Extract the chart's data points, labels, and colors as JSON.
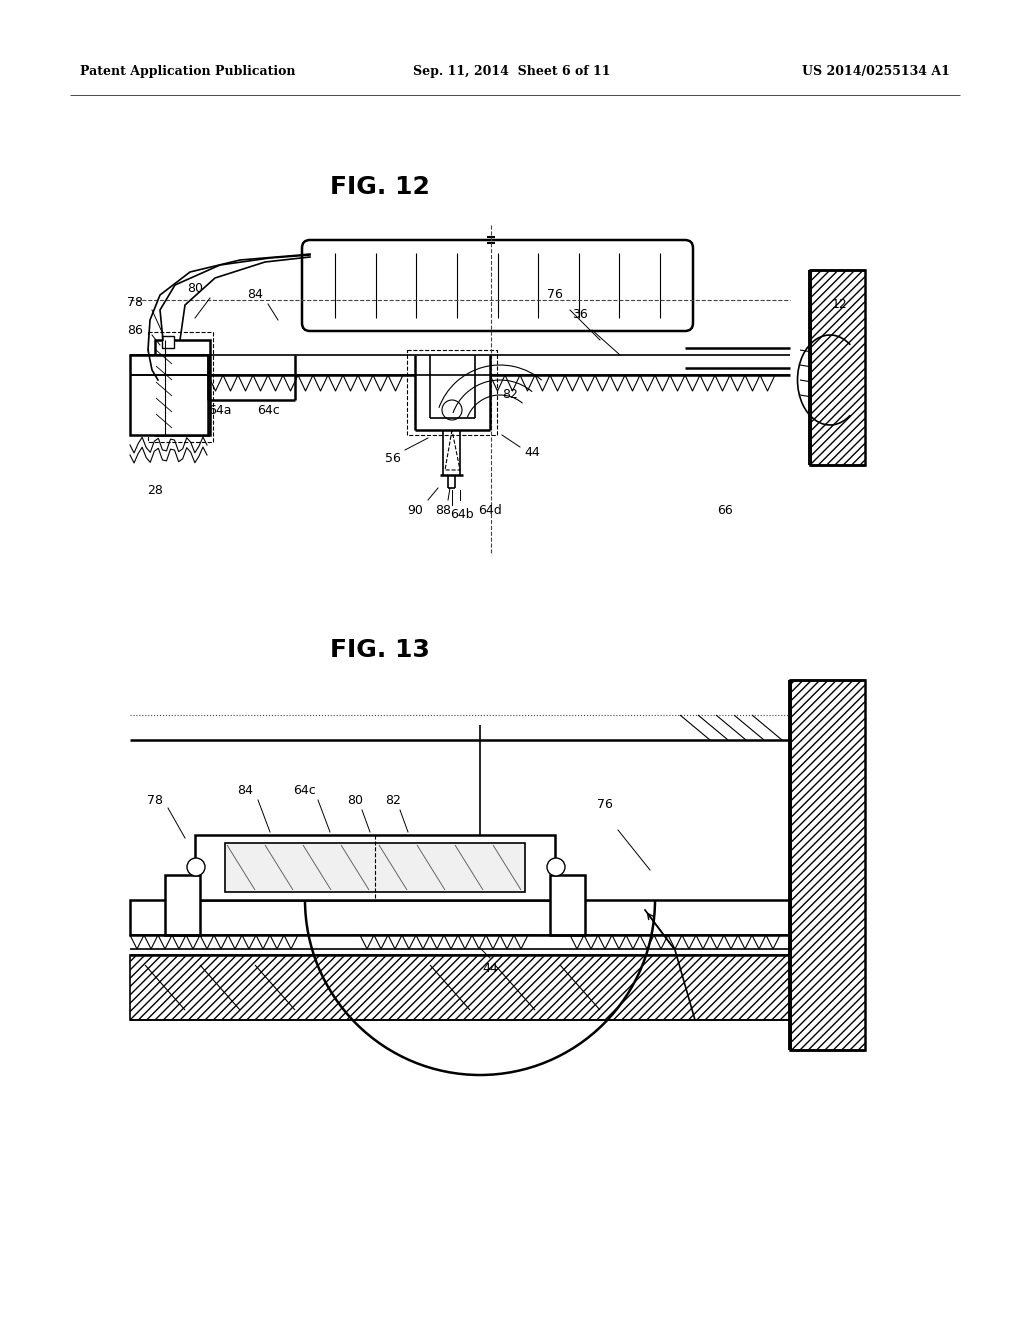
{
  "header_left": "Patent Application Publication",
  "header_center": "Sep. 11, 2014  Sheet 6 of 11",
  "header_right": "US 2014/0255134 A1",
  "fig12_label": "FIG. 12",
  "fig13_label": "FIG. 13",
  "bg_color": "#ffffff"
}
